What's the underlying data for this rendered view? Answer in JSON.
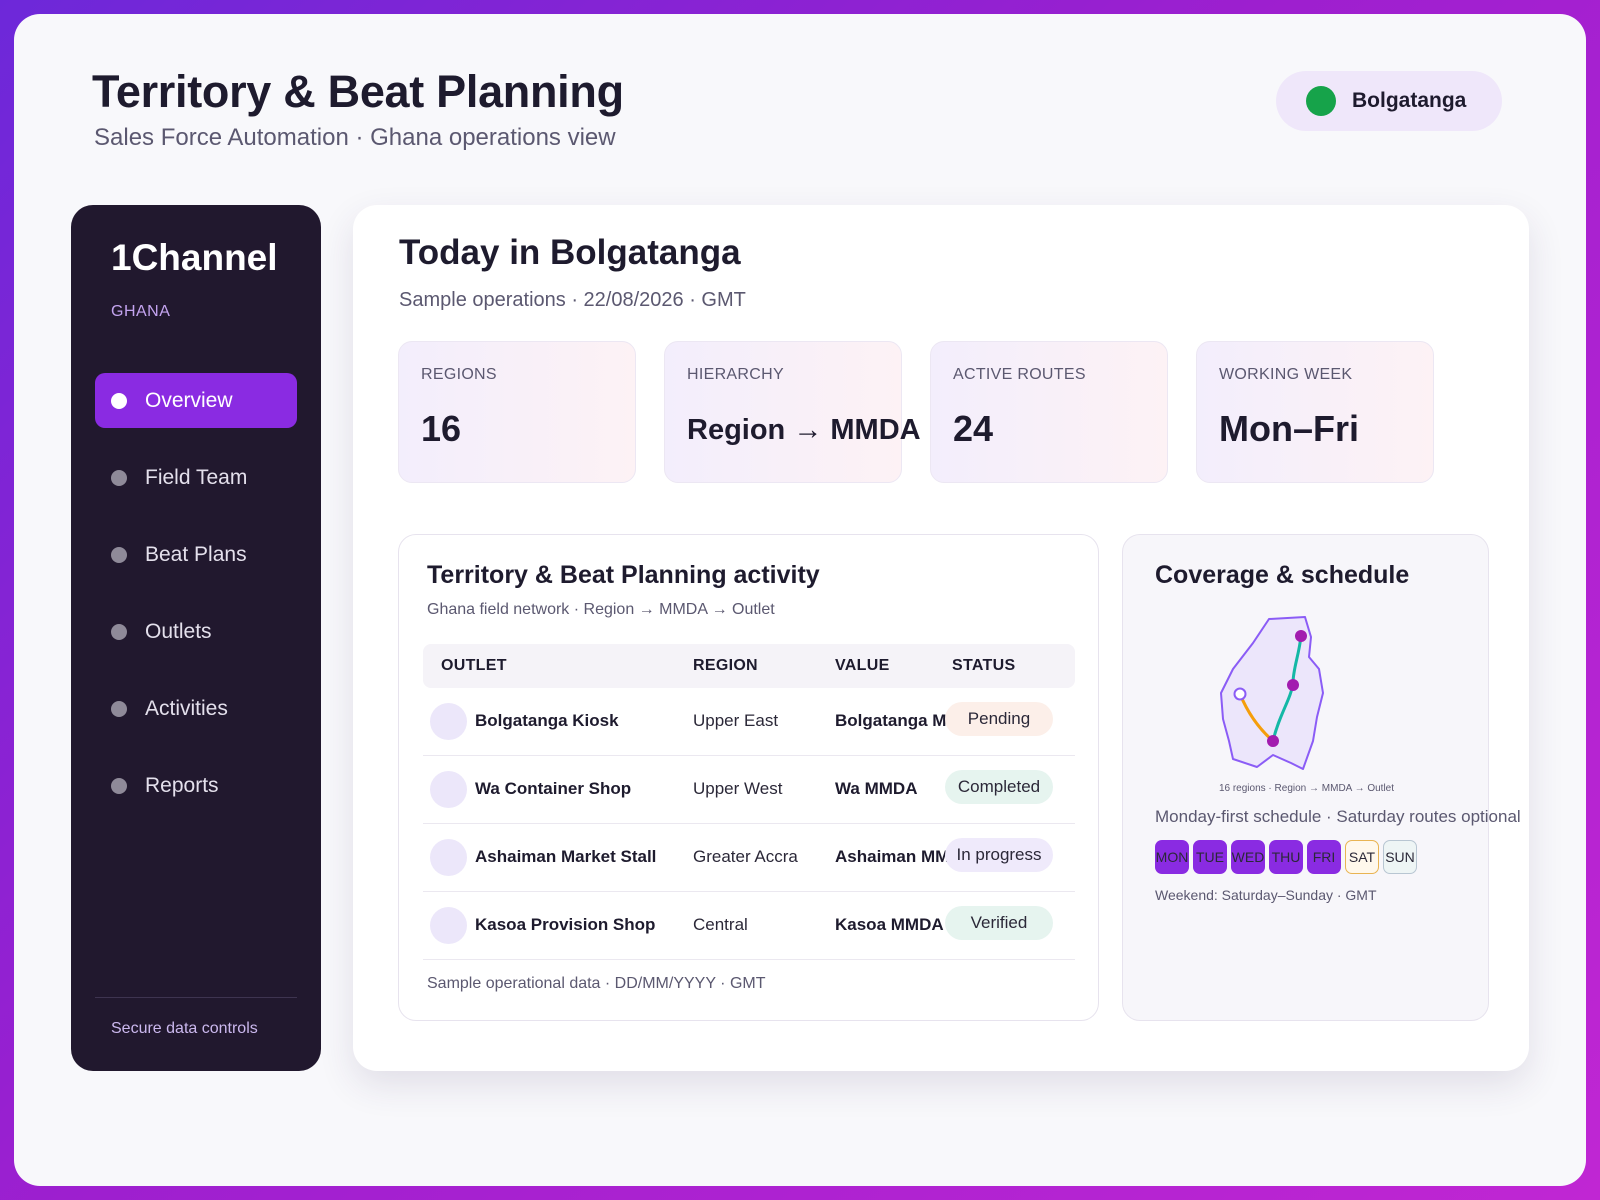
{
  "header": {
    "title": "Territory & Beat Planning",
    "subtitle": "Sales Force Automation · Ghana operations view",
    "location": "Bolgatanga"
  },
  "sidebar": {
    "brand": "1Channel",
    "country": "GHANA",
    "items": [
      {
        "label": "Overview",
        "active": true
      },
      {
        "label": "Field Team",
        "active": false
      },
      {
        "label": "Beat Plans",
        "active": false
      },
      {
        "label": "Outlets",
        "active": false
      },
      {
        "label": "Activities",
        "active": false
      },
      {
        "label": "Reports",
        "active": false
      }
    ],
    "footer": "Secure data controls"
  },
  "main": {
    "title": "Today in Bolgatanga",
    "subtitle": "Sample operations · 22/08/2026 · GMT",
    "stats": [
      {
        "label": "REGIONS",
        "value": "16"
      },
      {
        "label": "HIERARCHY",
        "value": "Region → MMDA"
      },
      {
        "label": "ACTIVE ROUTES",
        "value": "24"
      },
      {
        "label": "WORKING WEEK",
        "value": "Mon–Fri"
      }
    ]
  },
  "activity": {
    "title": "Territory & Beat Planning activity",
    "subtitle": "Ghana field network · Region → MMDA → Outlet",
    "columns": [
      "OUTLET",
      "REGION",
      "VALUE",
      "STATUS"
    ],
    "rows": [
      {
        "outlet": "Bolgatanga Kiosk",
        "region": "Upper East",
        "value": "Bolgatanga MMDA",
        "status": "Pending",
        "status_color": "#fcefe9"
      },
      {
        "outlet": "Wa Container Shop",
        "region": "Upper West",
        "value": "Wa MMDA",
        "status": "Completed",
        "status_color": "#e6f4ef"
      },
      {
        "outlet": "Ashaiman Market Stall",
        "region": "Greater Accra",
        "value": "Ashaiman MMDA",
        "status": "In progress",
        "status_color": "#efeafb"
      },
      {
        "outlet": "Kasoa Provision Shop",
        "region": "Central",
        "value": "Kasoa MMDA",
        "status": "Verified",
        "status_color": "#e6f4ef"
      }
    ],
    "footer": "Sample operational data · DD/MM/YYYY · GMT"
  },
  "coverage": {
    "title": "Coverage & schedule",
    "map_caption": "16 regions · Region → MMDA → Outlet",
    "schedule_note": "Monday-first schedule · Saturday routes optional",
    "days": [
      {
        "label": "MON",
        "type": "work"
      },
      {
        "label": "TUE",
        "type": "work"
      },
      {
        "label": "WED",
        "type": "work"
      },
      {
        "label": "THU",
        "type": "work"
      },
      {
        "label": "FRI",
        "type": "work"
      },
      {
        "label": "SAT",
        "type": "sat"
      },
      {
        "label": "SUN",
        "type": "sun"
      }
    ],
    "weekend_note": "Weekend: Saturday–Sunday · GMT"
  },
  "colors": {
    "accent": "#8a2be2",
    "location_dot": "#16a34a",
    "route_teal": "#14b8a6",
    "route_orange": "#f59e0b"
  }
}
